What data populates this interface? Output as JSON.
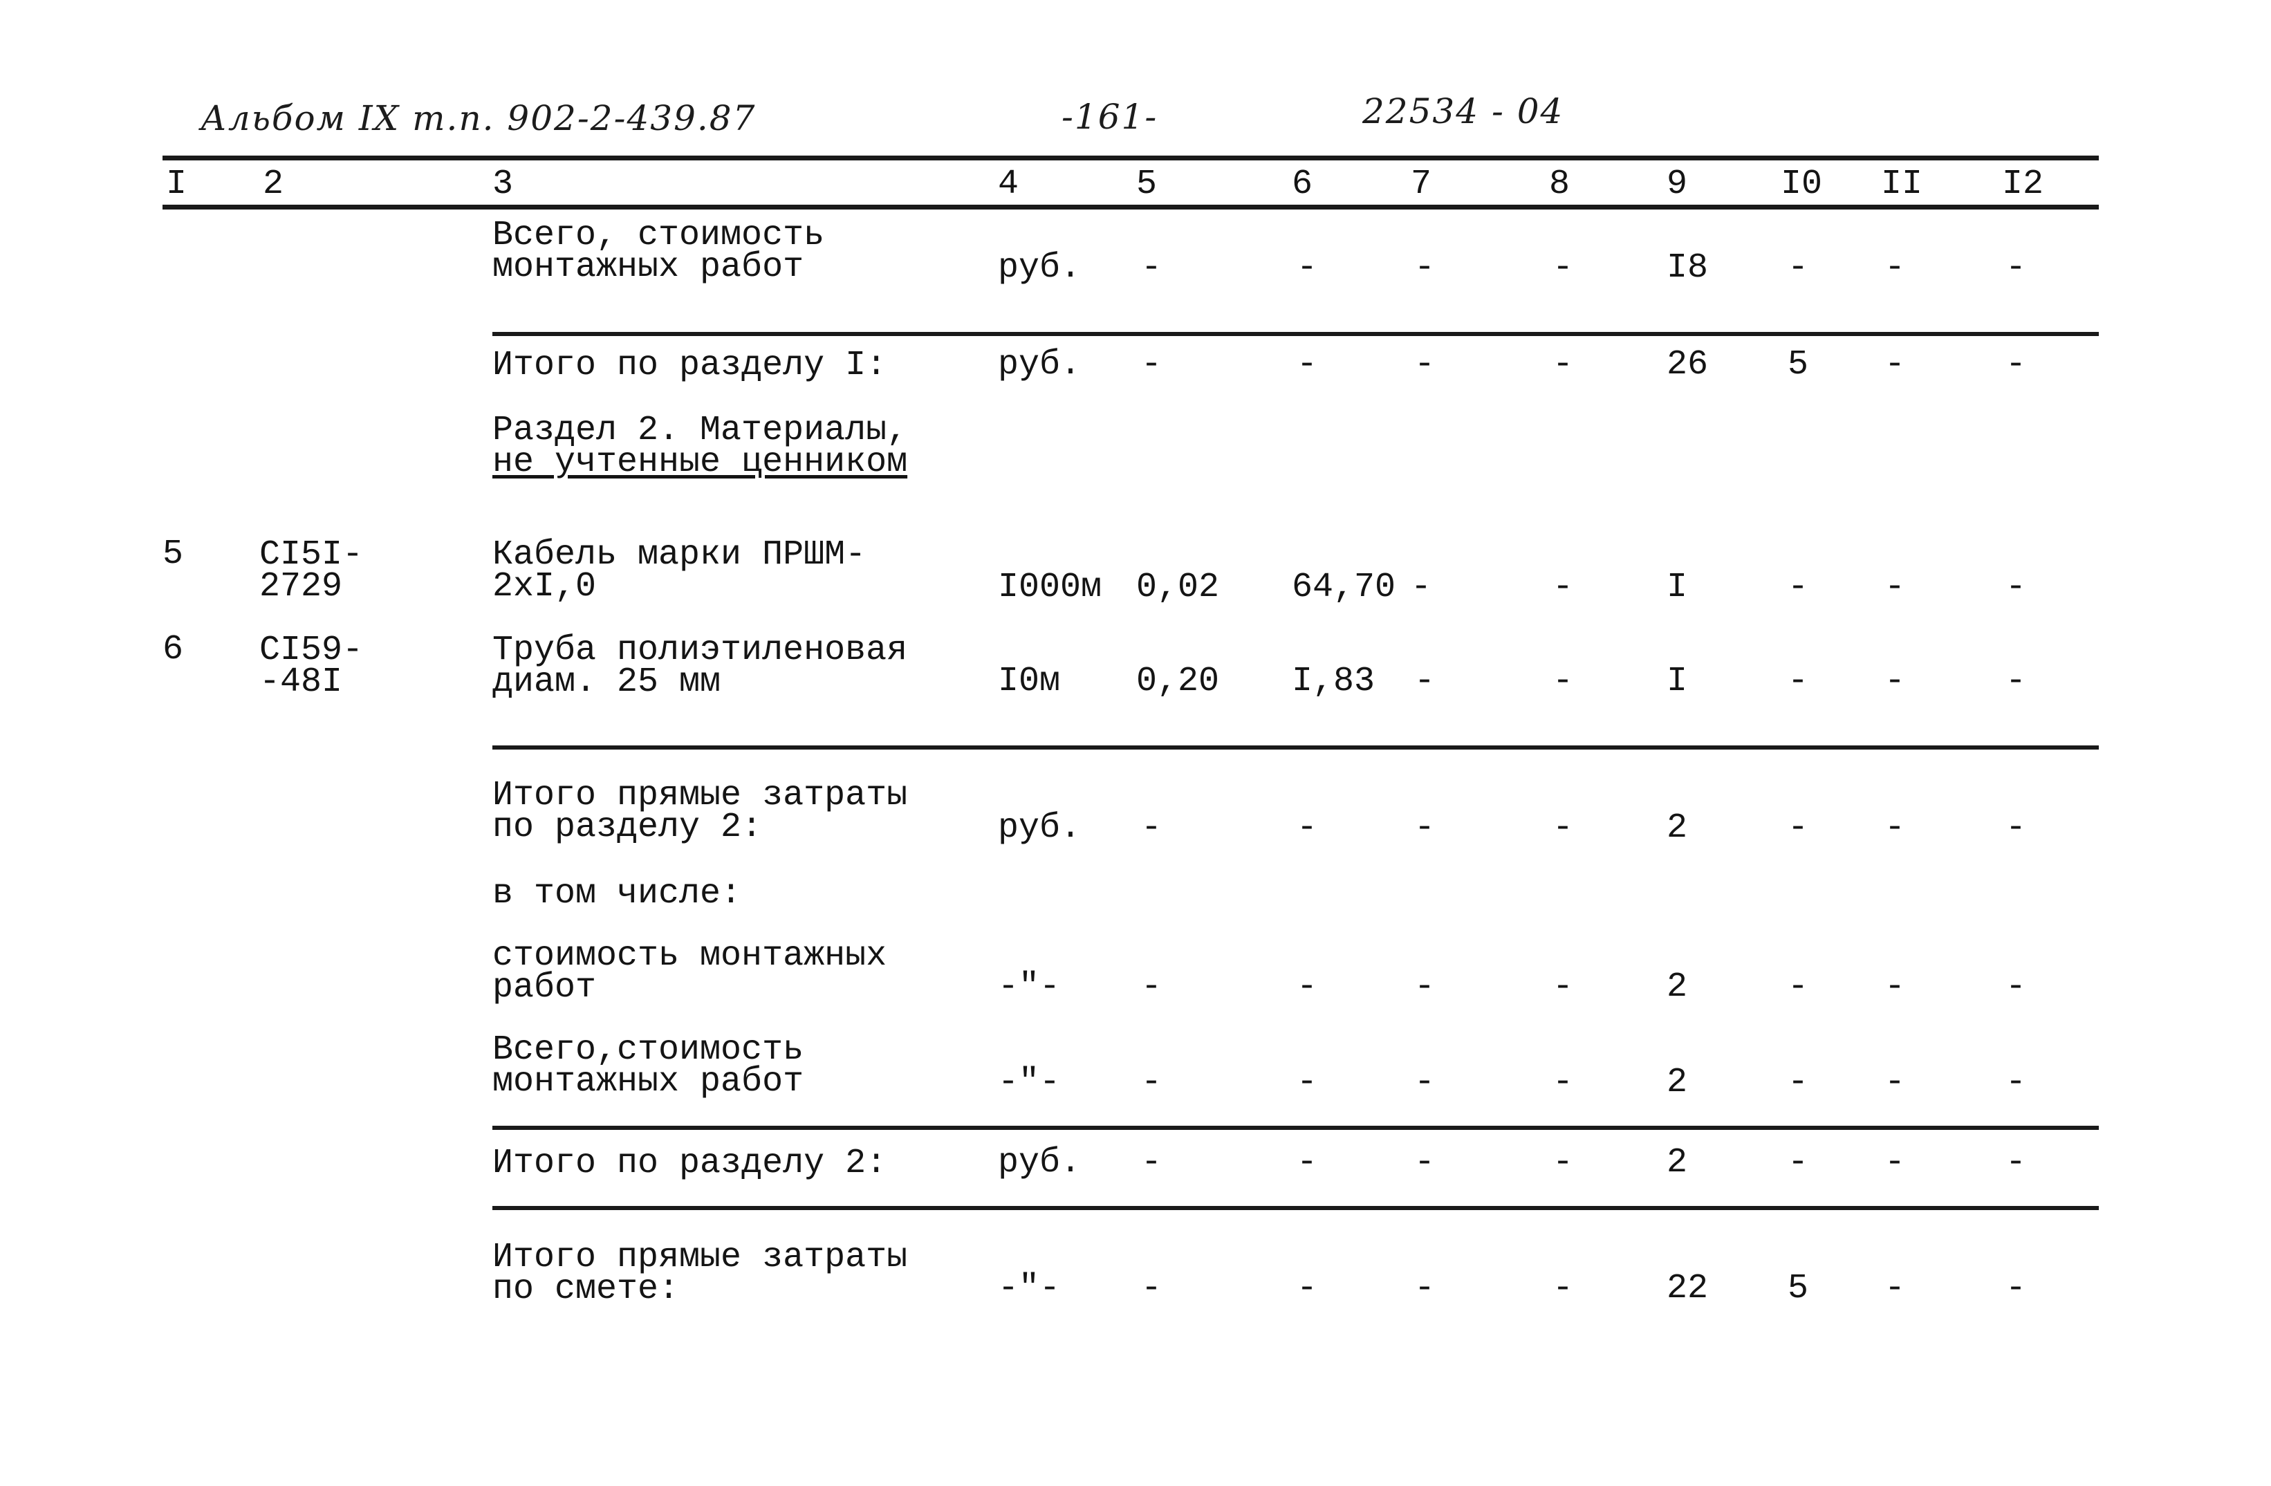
{
  "header": {
    "album_ref": "Альбом IX т.п. 902-2-439.87",
    "page_number": "-161-",
    "doc_code": "22534 - 04"
  },
  "columns": [
    "I",
    "2",
    "3",
    "4",
    "5",
    "6",
    "7",
    "8",
    "9",
    "I0",
    "II",
    "I2"
  ],
  "rows": [
    {
      "desc": [
        "Всего, стоимость",
        "монтажных работ"
      ],
      "unit": "руб.",
      "c5": "-",
      "c6": "-",
      "c7": "-",
      "c8": "-",
      "c9": "I8",
      "c10": "-",
      "c11": "-",
      "c12": "-"
    },
    {
      "desc": [
        "Итого по разделу I:"
      ],
      "unit": "руб.",
      "c5": "-",
      "c6": "-",
      "c7": "-",
      "c8": "-",
      "c9": "26",
      "c10": "5",
      "c11": "-",
      "c12": "-"
    },
    {
      "desc": [
        "Раздел 2. Материалы,",
        "не учтенные ценником"
      ]
    },
    {
      "num": "5",
      "code": [
        "CI5I-",
        "2729"
      ],
      "desc": [
        "Кабель марки ПРШМ-",
        "2xI,0"
      ],
      "unit": "I000м",
      "c5": "0,02",
      "c6": "64,70",
      "c7": "-",
      "c8": "-",
      "c9": "I",
      "c10": "-",
      "c11": "-",
      "c12": "-"
    },
    {
      "num": "6",
      "code": [
        "CI59-",
        "-48I"
      ],
      "desc": [
        "Труба полиэтиленовая",
        "диам. 25 мм"
      ],
      "unit": "I0м",
      "c5": "0,20",
      "c6": "I,83",
      "c7": "-",
      "c8": "-",
      "c9": "I",
      "c10": "-",
      "c11": "-",
      "c12": "-"
    },
    {
      "desc": [
        "Итого прямые затраты",
        "по разделу 2:"
      ],
      "unit": "руб.",
      "c5": "-",
      "c6": "-",
      "c7": "-",
      "c8": "-",
      "c9": "2",
      "c10": "-",
      "c11": "-",
      "c12": "-"
    },
    {
      "desc": [
        "в том числе:"
      ]
    },
    {
      "desc": [
        "стоимость монтажных",
        "работ"
      ],
      "unit": "-\"-",
      "c5": "-",
      "c6": "-",
      "c7": "-",
      "c8": "-",
      "c9": "2",
      "c10": "-",
      "c11": "-",
      "c12": "-"
    },
    {
      "desc": [
        "Всего,стоимость",
        "монтажных работ"
      ],
      "unit": "-\"-",
      "c5": "-",
      "c6": "-",
      "c7": "-",
      "c8": "-",
      "c9": "2",
      "c10": "-",
      "c11": "-",
      "c12": "-"
    },
    {
      "desc": [
        "Итого по разделу 2:"
      ],
      "unit": "руб.",
      "c5": "-",
      "c6": "-",
      "c7": "-",
      "c8": "-",
      "c9": "2",
      "c10": "-",
      "c11": "-",
      "c12": "-"
    },
    {
      "desc": [
        "Итого прямые затраты",
        "по смете:"
      ],
      "unit": "-\"-",
      "c5": "-",
      "c6": "-",
      "c7": "-",
      "c8": "-",
      "c9": "22",
      "c10": "5",
      "c11": "-",
      "c12": "-"
    }
  ]
}
